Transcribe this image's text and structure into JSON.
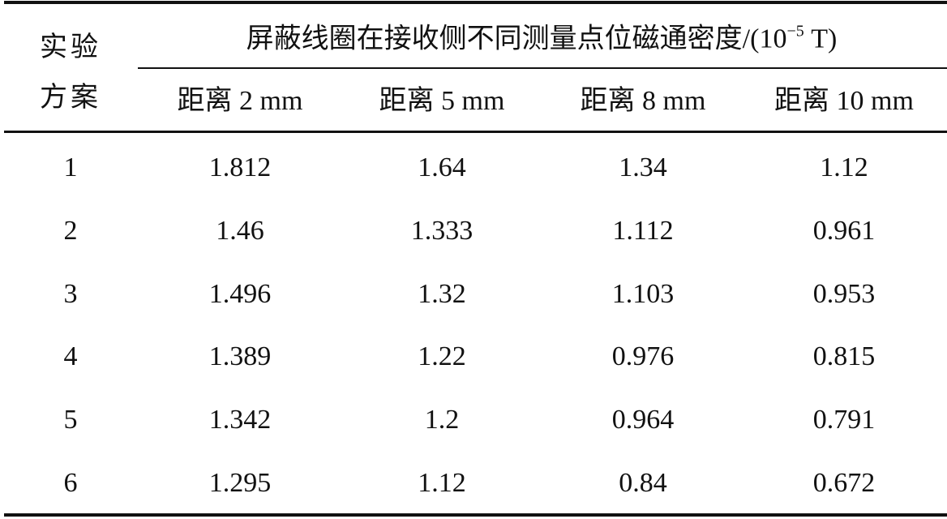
{
  "table": {
    "corner": "实验方案",
    "group_title": {
      "text": "屏蔽线圈在接收侧不同测量点位磁通密度/(10",
      "sup": "−5",
      "tail": " T)"
    },
    "columns": [
      "距离 2 mm",
      "距离 5 mm",
      "距离 8 mm",
      "距离 10 mm"
    ],
    "rows": [
      [
        "1",
        "1.812",
        "1.64",
        "1.34",
        "1.12"
      ],
      [
        "2",
        "1.46",
        "1.333",
        "1.112",
        "0.961"
      ],
      [
        "3",
        "1.496",
        "1.32",
        "1.103",
        "0.953"
      ],
      [
        "4",
        "1.389",
        "1.22",
        "0.976",
        "0.815"
      ],
      [
        "5",
        "1.342",
        "1.2",
        "0.964",
        "0.791"
      ],
      [
        "6",
        "1.295",
        "1.12",
        "0.84",
        "0.672"
      ]
    ]
  }
}
